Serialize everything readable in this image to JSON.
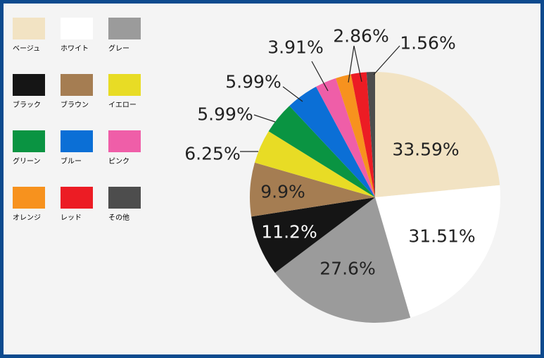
{
  "chart_data": {
    "type": "pie",
    "title": "",
    "legend_position": "left",
    "slices": [
      {
        "label": "ベージュ",
        "value": 33.59,
        "display": "33.59%",
        "color": "#f2e3c3"
      },
      {
        "label": "ホワイト",
        "value": 31.51,
        "display": "31.51%",
        "color": "#ffffff"
      },
      {
        "label": "グレー",
        "value": 27.6,
        "display": "27.6%",
        "color": "#9b9b9b"
      },
      {
        "label": "ブラック",
        "value": 11.2,
        "display": "11.2%",
        "color": "#151515"
      },
      {
        "label": "ブラウン",
        "value": 9.9,
        "display": "9.9%",
        "color": "#a57d52"
      },
      {
        "label": "イエロー",
        "value": 6.25,
        "display": "6.25%",
        "color": "#e8dc25"
      },
      {
        "label": "グリーン",
        "value": 5.99,
        "display": "5.99%",
        "color": "#0a9442"
      },
      {
        "label": "ブルー",
        "value": 5.99,
        "display": "5.99%",
        "color": "#0b6fd6"
      },
      {
        "label": "ピンク",
        "value": 3.91,
        "display": "3.91%",
        "color": "#ef5ea8"
      },
      {
        "label": "オレンジ",
        "value": 2.86,
        "display": "2.86%",
        "color": "#f7921e"
      },
      {
        "label": "レッド",
        "value": 2.86,
        "display": "",
        "color": "#ec1c24"
      },
      {
        "label": "その他",
        "value": 1.56,
        "display": "1.56%",
        "color": "#4d4d4d"
      }
    ]
  }
}
